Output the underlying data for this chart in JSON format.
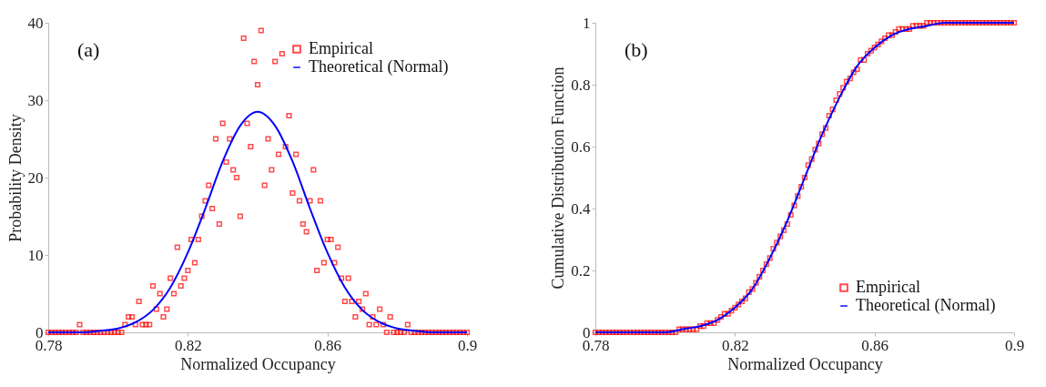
{
  "chart_data": [
    {
      "type": "scatter",
      "xlabel": "Normalized Occupancy",
      "ylabel": "Probability Density",
      "annotations": [
        "(a)"
      ],
      "xlim": [
        0.78,
        0.9
      ],
      "xticks": [
        0.78,
        0.82,
        0.86,
        0.9
      ],
      "ylim": [
        0,
        40
      ],
      "yticks": [
        0,
        10,
        20,
        30,
        40
      ],
      "legend": "top right",
      "grid": false,
      "series": [
        {
          "name": "Empirical",
          "marker": "square",
          "color": "#ff0000",
          "x": [
            0.78,
            0.781,
            0.782,
            0.783,
            0.784,
            0.785,
            0.786,
            0.787,
            0.788,
            0.789,
            0.79,
            0.791,
            0.792,
            0.793,
            0.794,
            0.795,
            0.796,
            0.797,
            0.798,
            0.799,
            0.8,
            0.801,
            0.802,
            0.803,
            0.804,
            0.805,
            0.806,
            0.807,
            0.808,
            0.809,
            0.81,
            0.811,
            0.812,
            0.813,
            0.814,
            0.815,
            0.816,
            0.817,
            0.818,
            0.819,
            0.82,
            0.821,
            0.822,
            0.823,
            0.824,
            0.825,
            0.826,
            0.827,
            0.828,
            0.829,
            0.83,
            0.831,
            0.832,
            0.833,
            0.834,
            0.835,
            0.836,
            0.837,
            0.838,
            0.839,
            0.84,
            0.841,
            0.842,
            0.843,
            0.844,
            0.845,
            0.846,
            0.847,
            0.848,
            0.849,
            0.85,
            0.851,
            0.852,
            0.853,
            0.854,
            0.855,
            0.856,
            0.857,
            0.858,
            0.859,
            0.86,
            0.861,
            0.862,
            0.863,
            0.864,
            0.865,
            0.866,
            0.867,
            0.868,
            0.869,
            0.87,
            0.871,
            0.872,
            0.873,
            0.874,
            0.875,
            0.876,
            0.877,
            0.878,
            0.879,
            0.88,
            0.881,
            0.882,
            0.883,
            0.884,
            0.885,
            0.886,
            0.887,
            0.888,
            0.889,
            0.89,
            0.891,
            0.892,
            0.893,
            0.894,
            0.895,
            0.896,
            0.897,
            0.898,
            0.899,
            0.9
          ],
          "values": [
            0,
            0,
            0,
            0,
            0,
            0,
            0,
            0,
            0,
            1,
            0,
            0,
            0,
            0,
            0,
            0,
            0,
            0,
            0,
            0,
            0,
            0,
            1,
            2,
            2,
            1,
            4,
            1,
            1,
            1,
            6,
            3,
            5,
            2,
            3,
            7,
            5,
            11,
            6,
            7,
            8,
            12,
            9,
            12,
            15,
            17,
            19,
            16,
            25,
            14,
            27,
            22,
            25,
            21,
            20,
            15,
            38,
            27,
            24,
            35,
            32,
            39,
            19,
            25,
            21,
            35,
            23,
            36,
            24,
            28,
            18,
            23,
            17,
            14,
            13,
            17,
            21,
            8,
            17,
            9,
            12,
            12,
            9,
            11,
            7,
            4,
            7,
            4,
            2,
            4,
            3,
            5,
            1,
            2,
            1,
            3,
            1,
            0,
            2,
            0,
            0,
            0,
            0,
            1,
            0,
            0,
            0,
            0,
            0,
            0,
            0,
            0,
            0,
            0,
            0,
            0,
            0,
            0,
            0,
            0,
            0
          ]
        },
        {
          "name": "Theoretical (Normal)",
          "type": "line",
          "line_style": "solid",
          "marker": "none",
          "color": "#0000ff",
          "x": [
            0.78,
            0.79,
            0.795,
            0.8,
            0.805,
            0.81,
            0.815,
            0.82,
            0.825,
            0.83,
            0.835,
            0.84,
            0.845,
            0.85,
            0.855,
            0.86,
            0.865,
            0.87,
            0.875,
            0.88,
            0.885,
            0.89,
            0.9
          ],
          "values": [
            0,
            0,
            0.2,
            0.5,
            1.3,
            2.9,
            5.8,
            10.3,
            16.0,
            22.1,
            26.7,
            28.5,
            26.7,
            22.1,
            16.0,
            10.3,
            5.8,
            2.9,
            1.3,
            0.5,
            0.2,
            0,
            0
          ]
        }
      ]
    },
    {
      "type": "scatter",
      "xlabel": "Normalized Occupancy",
      "ylabel": "Cumulative Distribution Function",
      "annotations": [
        "(b)"
      ],
      "xlim": [
        0.78,
        0.9
      ],
      "xticks": [
        0.78,
        0.82,
        0.86,
        0.9
      ],
      "ylim": [
        0,
        1
      ],
      "yticks": [
        0,
        0.2,
        0.4,
        0.6,
        0.8,
        1
      ],
      "legend": "bottom right",
      "grid": false,
      "series": [
        {
          "name": "Empirical",
          "marker": "square",
          "color": "#ff0000",
          "x": [
            0.78,
            0.781,
            0.782,
            0.783,
            0.784,
            0.785,
            0.786,
            0.787,
            0.788,
            0.789,
            0.79,
            0.791,
            0.792,
            0.793,
            0.794,
            0.795,
            0.796,
            0.797,
            0.798,
            0.799,
            0.8,
            0.801,
            0.802,
            0.803,
            0.804,
            0.805,
            0.806,
            0.807,
            0.808,
            0.809,
            0.81,
            0.811,
            0.812,
            0.813,
            0.814,
            0.815,
            0.816,
            0.817,
            0.818,
            0.819,
            0.82,
            0.821,
            0.822,
            0.823,
            0.824,
            0.825,
            0.826,
            0.827,
            0.828,
            0.829,
            0.83,
            0.831,
            0.832,
            0.833,
            0.834,
            0.835,
            0.836,
            0.837,
            0.838,
            0.839,
            0.84,
            0.841,
            0.842,
            0.843,
            0.844,
            0.845,
            0.846,
            0.847,
            0.848,
            0.849,
            0.85,
            0.851,
            0.852,
            0.853,
            0.854,
            0.855,
            0.856,
            0.857,
            0.858,
            0.859,
            0.86,
            0.861,
            0.862,
            0.863,
            0.864,
            0.865,
            0.866,
            0.867,
            0.868,
            0.869,
            0.87,
            0.871,
            0.872,
            0.873,
            0.874,
            0.875,
            0.876,
            0.877,
            0.878,
            0.879,
            0.88,
            0.881,
            0.882,
            0.883,
            0.884,
            0.885,
            0.886,
            0.887,
            0.888,
            0.889,
            0.89,
            0.891,
            0.892,
            0.893,
            0.894,
            0.895,
            0.896,
            0.897,
            0.898,
            0.899,
            0.9
          ],
          "values": [
            0,
            0,
            0,
            0,
            0,
            0,
            0,
            0,
            0,
            0,
            0,
            0,
            0,
            0,
            0,
            0,
            0,
            0,
            0,
            0,
            0,
            0,
            0,
            0,
            0.01,
            0.01,
            0.01,
            0.01,
            0.01,
            0.01,
            0.02,
            0.02,
            0.03,
            0.03,
            0.03,
            0.04,
            0.05,
            0.06,
            0.06,
            0.07,
            0.08,
            0.09,
            0.1,
            0.11,
            0.13,
            0.14,
            0.16,
            0.18,
            0.2,
            0.22,
            0.24,
            0.27,
            0.29,
            0.31,
            0.33,
            0.35,
            0.38,
            0.41,
            0.44,
            0.47,
            0.5,
            0.54,
            0.56,
            0.59,
            0.61,
            0.64,
            0.66,
            0.7,
            0.72,
            0.75,
            0.77,
            0.79,
            0.81,
            0.82,
            0.84,
            0.85,
            0.88,
            0.88,
            0.9,
            0.91,
            0.92,
            0.93,
            0.94,
            0.95,
            0.96,
            0.96,
            0.97,
            0.98,
            0.98,
            0.98,
            0.98,
            0.99,
            0.99,
            0.99,
            0.99,
            1,
            1,
            1,
            1,
            1,
            1,
            1,
            1,
            1,
            1,
            1,
            1,
            1,
            1,
            1,
            1,
            1,
            1,
            1,
            1,
            1,
            1,
            1,
            1,
            1,
            1
          ]
        },
        {
          "name": "Theoretical (Normal)",
          "type": "line",
          "line_style": "solid",
          "marker": "none",
          "color": "#0000ff",
          "x": [
            0.78,
            0.79,
            0.795,
            0.8,
            0.805,
            0.81,
            0.815,
            0.82,
            0.825,
            0.83,
            0.835,
            0.84,
            0.845,
            0.85,
            0.855,
            0.86,
            0.865,
            0.87,
            0.875,
            0.88,
            0.885,
            0.89,
            0.9
          ],
          "values": [
            0,
            0,
            0,
            0,
            0.01,
            0.02,
            0.04,
            0.08,
            0.14,
            0.24,
            0.36,
            0.5,
            0.64,
            0.76,
            0.86,
            0.92,
            0.96,
            0.98,
            0.99,
            1,
            1,
            1,
            1
          ]
        }
      ]
    }
  ]
}
